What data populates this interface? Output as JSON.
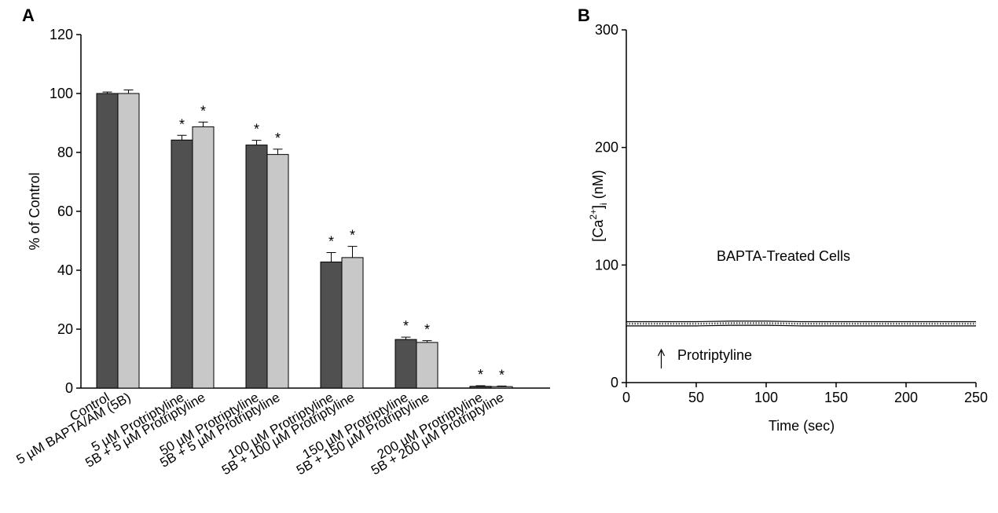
{
  "panels": {
    "a_label": "A",
    "b_label": "B"
  },
  "colors": {
    "dark_bar": "#505050",
    "light_bar": "#c8c8c8",
    "axis": "#000000"
  },
  "chart_data": [
    {
      "type": "bar",
      "panel": "A",
      "ylabel": "% of Control",
      "ylim": [
        0,
        120
      ],
      "yticks": [
        0,
        20,
        40,
        60,
        80,
        100,
        120
      ],
      "grid": false,
      "categories": [
        "Control",
        "5 µM BAPTA/AM (5B)",
        "5 µM Protriptyline",
        "5B + 5 µM Protriptyline",
        "50 µM Protriptyline",
        "5B + 5 µM Protriptyline",
        "100 µM Protriptyline",
        "5B + 100 µM Protriptyline",
        "150 µM Protriptyline",
        "5B + 150 µM Protriptyline",
        "200 µM Protriptyline",
        "5B + 200 µM Protriptyline"
      ],
      "values": [
        100,
        100,
        84.2,
        88.7,
        82.5,
        79.3,
        42.8,
        44.3,
        16.5,
        15.5,
        0.6,
        0.5
      ],
      "errors": [
        0.5,
        1.2,
        1.6,
        1.6,
        1.6,
        1.8,
        3.2,
        3.8,
        0.8,
        0.6,
        0.2,
        0.2
      ],
      "significance": [
        "",
        "",
        "*",
        "*",
        "*",
        "*",
        "*",
        "*",
        "*",
        "*",
        "*",
        "*"
      ],
      "bar_shade": [
        "dark",
        "light",
        "dark",
        "light",
        "dark",
        "light",
        "dark",
        "light",
        "dark",
        "light",
        "dark",
        "light"
      ]
    },
    {
      "type": "line",
      "panel": "B",
      "xlabel": "Time (sec)",
      "ylabel_base": "[Ca",
      "ylabel_sup": "2+",
      "ylabel_end": "]",
      "ylabel_sub": "i",
      "ylabel_tail": " (nM)",
      "xlim": [
        0,
        250
      ],
      "ylim": [
        0,
        300
      ],
      "xticks": [
        0,
        50,
        100,
        150,
        200,
        250
      ],
      "yticks": [
        0,
        100,
        200,
        300
      ],
      "annotation": "BAPTA-Treated Cells",
      "arrow_label": "Protriptyline",
      "arrow_at_x": 25,
      "series": [
        {
          "x": [
            0,
            25,
            50,
            75,
            100,
            125,
            150,
            175,
            200,
            225,
            250
          ],
          "y": [
            50,
            50,
            50,
            50.5,
            50.5,
            50,
            50,
            50,
            50,
            50,
            50
          ],
          "band": 1.8
        }
      ]
    }
  ]
}
